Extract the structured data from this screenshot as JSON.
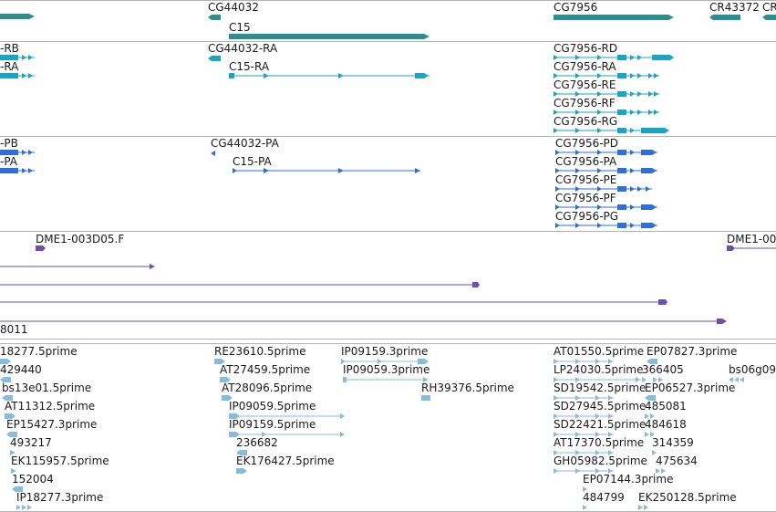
{
  "colors": {
    "gene": "#2c8f8f",
    "mrna": "#1aa5c0",
    "protein": "#2f6fd6",
    "clone": "#6b4fa8",
    "est": "#86bce0",
    "divider": "#b4b4b4",
    "text": "#1a1a1a"
  },
  "tracks": {
    "genes": {
      "labels": [
        "CG44032",
        "C15",
        "CG7956",
        "CR43372",
        "CR"
      ]
    },
    "transcripts": {
      "labels": [
        "-RB",
        "-RA",
        "CG44032-RA",
        "C15-RA",
        "CG7956-RD",
        "CG7956-RA",
        "CG7956-RE",
        "CG7956-RF",
        "CG7956-RG"
      ]
    },
    "proteins": {
      "labels": [
        "-PB",
        "-PA",
        "CG44032-PA",
        "C15-PA",
        "CG7956-PD",
        "CG7956-PA",
        "CG7956-PE",
        "CG7956-PF",
        "CG7956-PG"
      ]
    },
    "clones": {
      "labels": [
        "DME1-003D05.F",
        "DME1-00",
        "8011"
      ]
    },
    "ests": {
      "labels": [
        "18277.5prime",
        "429440",
        "bs13e01.5prime",
        "AT11312.5prime",
        "EP15427.3prime",
        "493217",
        "EK115957.5prime",
        "152004",
        "IP18277.3prime",
        "RE23610.5prime",
        "AT27459.5prime",
        "AT28096.5prime",
        "IP09059.5prime",
        "IP09159.5prime",
        "236682",
        "EK176427.5prime",
        "IP09159.3prime",
        "IP09059.3prime",
        "RH39376.5prime",
        "AT01550.5prime",
        "EP07827.3prime",
        "LP24030.5prime",
        "366405",
        "bs06g09",
        "SD19542.5prime",
        "EP06527.3prime",
        "SD27945.5prime",
        "485081",
        "SD22421.5prime",
        "484618",
        "AT17370.5prime",
        "314359",
        "GH05982.5prime",
        "475634",
        "EP07144.3prime",
        "484799",
        "EK250128.5prime"
      ]
    }
  }
}
